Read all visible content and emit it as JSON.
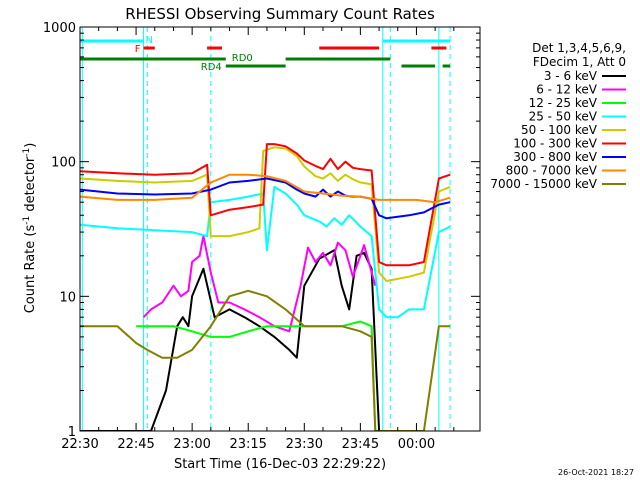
{
  "chart_data": {
    "type": "line",
    "title": "RHESSI Observing Summary Count Rates",
    "xlabel": "Start Time (16-Dec-03 22:29:22)",
    "ylabel_main": "Count Rate (s",
    "ylabel_sup1": "-1",
    "ylabel_mid": " detector",
    "ylabel_sup2": "-1",
    "ylabel_end": ")",
    "y_scale": "log",
    "ylim": [
      1,
      1000
    ],
    "xlim_min": [
      0,
      107
    ],
    "x_ticks": [
      {
        "min": 0,
        "label": "22:30"
      },
      {
        "min": 15,
        "label": "22:45"
      },
      {
        "min": 30,
        "label": "23:00"
      },
      {
        "min": 45,
        "label": "23:15"
      },
      {
        "min": 60,
        "label": "23:30"
      },
      {
        "min": 75,
        "label": "23:45"
      },
      {
        "min": 90,
        "label": "00:00"
      }
    ],
    "y_ticks": [
      {
        "value": 1,
        "label": "1"
      },
      {
        "value": 10,
        "label": "10"
      },
      {
        "value": 100,
        "label": "100"
      },
      {
        "value": 1000,
        "label": "1000"
      }
    ],
    "legend_header": [
      "Det 1,3,4,5,6,9,",
      "FDecim 1, Att 0"
    ],
    "legend_placement": "right",
    "series": [
      {
        "name": "3 - 6 keV",
        "color": "#000000",
        "x": [
          0,
          15,
          19,
          23,
          26,
          27.5,
          29,
          30,
          33,
          36,
          40,
          44,
          48,
          52,
          56,
          58,
          60,
          64,
          68,
          70,
          72,
          74,
          76,
          78,
          80,
          82,
          86
        ],
        "y": [
          1,
          1,
          1,
          2,
          6,
          7,
          6,
          10,
          16,
          7,
          8,
          7,
          6,
          5,
          4,
          3.5,
          12,
          19,
          22,
          12,
          8,
          20,
          21,
          16,
          1,
          1,
          1
        ]
      },
      {
        "name": "6 - 12 keV",
        "color": "#ff00ff",
        "x": [
          17,
          19,
          22,
          25,
          27,
          29,
          30,
          32,
          33,
          35,
          37,
          40,
          44,
          48,
          52,
          56,
          59,
          61,
          63,
          65,
          67,
          69,
          71,
          73,
          75,
          76,
          77,
          79
        ],
        "y": [
          7,
          8,
          9,
          12,
          10,
          11,
          18,
          20,
          28,
          15,
          9,
          9,
          8,
          7,
          6,
          5.5,
          12,
          23,
          18,
          21,
          17,
          25,
          22,
          14,
          20,
          24,
          19,
          12
        ]
      },
      {
        "name": "12 - 25 keV",
        "color": "#00ff00",
        "x": [
          15,
          20,
          25,
          30,
          35,
          40,
          45,
          50,
          55,
          60,
          65,
          70,
          75,
          78,
          79,
          85
        ],
        "y": [
          6,
          6,
          6,
          5.5,
          5,
          5,
          5.5,
          6,
          6,
          6,
          6,
          6,
          6.5,
          6,
          1,
          1
        ]
      },
      {
        "name": "25 - 50 keV",
        "color": "#00ffff",
        "x": [
          0,
          10,
          20,
          30,
          34,
          35,
          40,
          45,
          49,
          50,
          52,
          55,
          58,
          60,
          64,
          66,
          68,
          70,
          72,
          75,
          78,
          80,
          82,
          85,
          88,
          92,
          96,
          99
        ],
        "y": [
          34,
          32,
          31,
          30,
          28,
          50,
          52,
          55,
          58,
          22,
          65,
          58,
          48,
          40,
          36,
          33,
          38,
          34,
          40,
          33,
          28,
          8,
          7,
          7,
          8,
          8,
          30,
          33
        ]
      },
      {
        "name": "50 - 100 keV",
        "color": "#cccc00",
        "x": [
          0,
          10,
          20,
          30,
          34,
          35,
          40,
          45,
          48,
          49,
          52,
          55,
          58,
          60,
          63,
          65,
          67,
          69,
          71,
          73,
          75,
          78,
          80,
          82,
          88,
          92,
          96,
          99
        ],
        "y": [
          75,
          72,
          70,
          72,
          80,
          28,
          28,
          30,
          32,
          120,
          128,
          125,
          110,
          92,
          78,
          75,
          82,
          72,
          80,
          74,
          70,
          68,
          15,
          13,
          14,
          15,
          60,
          65
        ]
      },
      {
        "name": "100 - 300 keV",
        "color": "#ff0000",
        "x": [
          0,
          10,
          20,
          30,
          34,
          35,
          40,
          45,
          49,
          50,
          52,
          55,
          58,
          60,
          63,
          65,
          67,
          69,
          71,
          73,
          75,
          78,
          80,
          82,
          88,
          92,
          96,
          99
        ],
        "y": [
          85,
          82,
          80,
          82,
          95,
          40,
          44,
          46,
          48,
          135,
          135,
          130,
          115,
          102,
          93,
          88,
          105,
          88,
          100,
          90,
          88,
          86,
          18,
          17,
          17,
          18,
          75,
          80
        ]
      },
      {
        "name": "300 - 800 keV",
        "color": "#0000ff",
        "x": [
          0,
          10,
          20,
          30,
          35,
          40,
          45,
          50,
          55,
          58,
          60,
          63,
          65,
          67,
          69,
          71,
          73,
          75,
          78,
          80,
          82,
          88,
          92,
          96,
          99
        ],
        "y": [
          62,
          58,
          57,
          58,
          62,
          70,
          72,
          75,
          70,
          62,
          58,
          55,
          62,
          55,
          60,
          56,
          55,
          55,
          53,
          40,
          38,
          40,
          42,
          48,
          50
        ]
      },
      {
        "name": "800 - 7000 keV",
        "color": "#ff8800",
        "x": [
          0,
          10,
          20,
          30,
          35,
          40,
          45,
          50,
          55,
          60,
          65,
          70,
          75,
          80,
          85,
          90,
          95,
          99
        ],
        "y": [
          55,
          52,
          52,
          54,
          70,
          80,
          80,
          78,
          72,
          60,
          58,
          56,
          55,
          52,
          52,
          52,
          50,
          54
        ]
      },
      {
        "name": "7000 - 15000 keV",
        "color": "#808000",
        "x": [
          0,
          5,
          10,
          15,
          18,
          22,
          26,
          30,
          35,
          40,
          45,
          50,
          55,
          60,
          65,
          70,
          75,
          78,
          79,
          82,
          88,
          92,
          96,
          99
        ],
        "y": [
          6,
          6,
          6,
          4.5,
          4,
          3.5,
          3.5,
          4,
          6,
          10,
          11,
          10,
          8,
          6,
          6,
          6,
          5.5,
          5,
          1,
          1,
          1,
          1,
          6,
          6
        ]
      }
    ],
    "state_bars": [
      {
        "label": "N",
        "color": "#00ffff",
        "level": 1,
        "segments": [
          [
            0,
            17
          ],
          [
            81,
            99
          ]
        ]
      },
      {
        "label": "F",
        "color": "#ff0000",
        "level": 2,
        "segments": [
          [
            17,
            20
          ],
          [
            34,
            38
          ],
          [
            64,
            80
          ],
          [
            94,
            98
          ]
        ]
      },
      {
        "label": "RD0",
        "color": "#008000",
        "level": 3,
        "segments": [
          [
            0,
            39
          ],
          [
            55,
            83
          ]
        ]
      },
      {
        "label": "RD4",
        "color": "#008000",
        "level": 4,
        "segments": [
          [
            39,
            55
          ],
          [
            86,
            95
          ],
          [
            97,
            99
          ]
        ]
      }
    ],
    "vlines_solid": [
      0.6,
      17,
      81,
      96
    ],
    "vlines_dashed": [
      18,
      35,
      83,
      99
    ],
    "timestamp": "26-Oct-2021 18:27"
  }
}
